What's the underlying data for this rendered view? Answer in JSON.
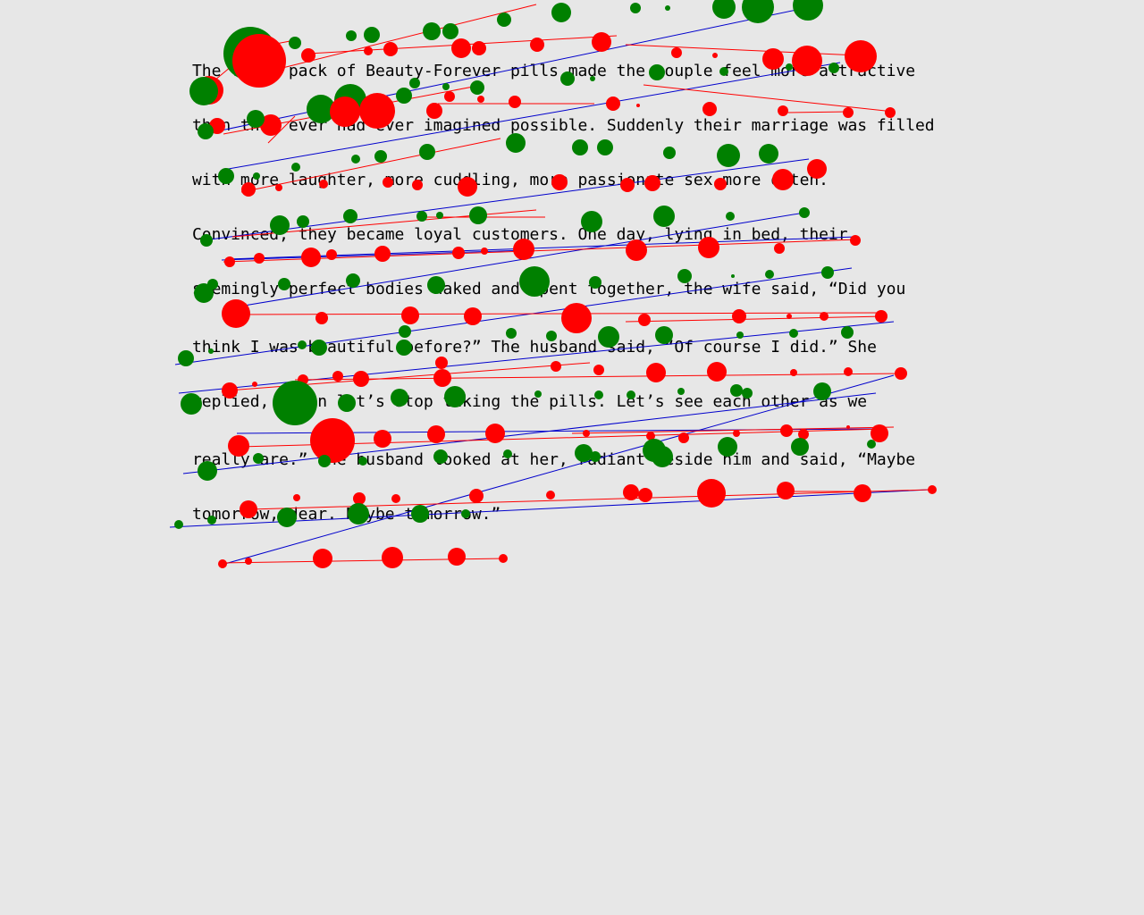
{
  "passage": {
    "lines": [
      "The first pack of Beauty-Forever pills made the couple feel more attractive",
      "than they ever had ever imagined possible. Suddenly their marriage was filled",
      "with more laughter, more cuddling, more passionate sex more often.",
      "Convinced, they became loyal customers. One day, lying in bed, their",
      "seemingly perfect bodies naked and spent together, the wife said, “Did you",
      "think I was beautiful before?” The husband said, “Of course I did.” She",
      "replied, “Then let’s stop taking the pills. Let’s see each other as we",
      "really are.” The husband looked at her, radiant beside him and said, “Maybe",
      "tomorrow, dear. Maybe tomorrow.”"
    ]
  },
  "overlay_colors": {
    "fixation_red": "#ff0000",
    "fixation_green": "#008000",
    "saccade_red": "#ff0000",
    "saccade_blue": "#0000cc"
  }
}
